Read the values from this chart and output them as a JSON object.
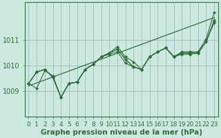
{
  "background_color": "#cce8e0",
  "grid_color": "#9dbfb8",
  "line_color": "#2d6e3a",
  "xlabel": "Graphe pression niveau de la mer (hPa)",
  "xlabel_fontsize": 7.5,
  "tick_fontsize": 6.5,
  "xlim": [
    -0.5,
    23.5
  ],
  "ylim": [
    1008.0,
    1012.5
  ],
  "yticks": [
    1009,
    1010,
    1011
  ],
  "xticks": [
    0,
    1,
    2,
    3,
    4,
    5,
    6,
    7,
    8,
    9,
    10,
    11,
    12,
    13,
    14,
    15,
    16,
    17,
    18,
    19,
    20,
    21,
    22,
    23
  ],
  "series": [
    [
      1009.3,
      1009.1,
      1009.8,
      1009.6,
      1008.75,
      1009.3,
      1009.35,
      1009.85,
      1010.05,
      1010.35,
      1010.5,
      1010.75,
      1010.35,
      1010.15,
      1009.85,
      1010.35,
      1010.55,
      1010.7,
      1010.35,
      1010.55,
      1010.55,
      1010.55,
      1011.05,
      1012.1
    ],
    [
      1009.3,
      1009.75,
      1009.85,
      1009.55,
      1008.75,
      1009.3,
      1009.35,
      1009.85,
      1010.05,
      1010.35,
      1010.5,
      1010.65,
      1010.25,
      1009.95,
      1009.85,
      1010.35,
      1010.55,
      1010.7,
      1010.35,
      1010.5,
      1010.5,
      1010.5,
      1010.95,
      1011.8
    ],
    [
      1009.3,
      1009.75,
      1009.85,
      1009.55,
      1008.75,
      1009.3,
      1009.35,
      1009.85,
      1010.05,
      1010.35,
      1010.45,
      1010.55,
      1010.1,
      1009.95,
      1009.85,
      1010.35,
      1010.55,
      1010.7,
      1010.35,
      1010.45,
      1010.45,
      1010.5,
      1010.95,
      1011.7
    ],
    [
      1009.3,
      1009.75,
      1009.85,
      1009.55,
      1008.75,
      1009.3,
      1009.35,
      1009.85,
      1010.05,
      1010.35,
      1010.5,
      1010.65,
      1010.25,
      1009.95,
      1009.85,
      1010.35,
      1010.55,
      1010.7,
      1010.35,
      1010.5,
      1010.5,
      1010.5,
      1010.95,
      1011.75
    ]
  ],
  "trend_line": [
    1009.2,
    1011.9
  ],
  "trend_x": [
    0,
    23
  ]
}
